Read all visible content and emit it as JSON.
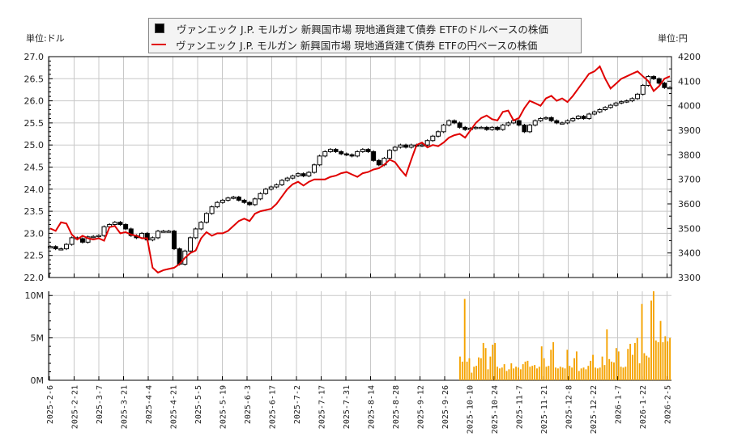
{
  "legend": {
    "usd_label": "ヴァンエック J.P. モルガン 新興国市場 現地通貨建て債券 ETFのドルベースの株価",
    "jpy_label": "ヴァンエック J.P. モルガン 新興国市場 現地通貨建て債券 ETFの円ベースの株価"
  },
  "axes": {
    "left_unit": "単位:ドル",
    "right_unit": "単位:円"
  },
  "colors": {
    "usd_candle": "#000000",
    "jpy_line": "#e00000",
    "volume_bar": "#f5a300",
    "grid": "#c8c8c8"
  },
  "chart_data": [
    {
      "type": "candlestick+line",
      "title": "",
      "legend": [
        "ヴァンエック J.P. モルガン 新興国市場 現地通貨建て債券 ETFのドルベースの株価",
        "ヴァンエック J.P. モルガン 新興国市場 現地通貨建て債券 ETFの円ベースの株価"
      ],
      "ylabel_left": "単位:ドル",
      "ylabel_right": "単位:円",
      "ylim_left": [
        22.0,
        27.0
      ],
      "ylim_right": [
        3300,
        4200
      ],
      "yticks_left": [
        "22.0",
        "22.5",
        "23.0",
        "23.5",
        "24.0",
        "24.5",
        "25.0",
        "25.5",
        "26.0",
        "26.5",
        "27.0"
      ],
      "yticks_right": [
        "3300",
        "3400",
        "3500",
        "3600",
        "3700",
        "3800",
        "3900",
        "4000",
        "4100",
        "4200"
      ],
      "x_tick_labels": [
        "2025-2-6",
        "2025-2-21",
        "2025-3-7",
        "2025-3-21",
        "2025-4-4",
        "2025-4-21",
        "2025-5-5",
        "2025-5-19",
        "2025-6-3",
        "2025-6-17",
        "2025-7-2",
        "2025-7-17",
        "2025-7-31",
        "2025-8-14",
        "2025-8-28",
        "2025-9-12",
        "2025-9-26",
        "2025-10-10",
        "2025-10-24",
        "2025-11-7",
        "2025-11-21",
        "2025-12-8",
        "2025-12-22",
        "2026-1-7",
        "2026-1-22",
        "2026-2-5"
      ],
      "grid": true,
      "usd_close": [
        22.7,
        22.65,
        22.65,
        22.75,
        22.9,
        22.88,
        22.8,
        22.92,
        22.93,
        22.95,
        23.15,
        23.2,
        23.25,
        23.2,
        23.1,
        22.95,
        22.9,
        23.0,
        22.85,
        22.9,
        23.05,
        23.05,
        23.05,
        22.65,
        22.3,
        22.6,
        22.9,
        23.1,
        23.25,
        23.45,
        23.6,
        23.7,
        23.75,
        23.8,
        23.82,
        23.75,
        23.7,
        23.65,
        23.78,
        23.9,
        24.0,
        24.05,
        24.1,
        24.2,
        24.25,
        24.3,
        24.35,
        24.3,
        24.38,
        24.55,
        24.75,
        24.85,
        24.9,
        24.85,
        24.8,
        24.78,
        24.75,
        24.85,
        24.9,
        24.85,
        24.65,
        24.55,
        24.7,
        24.88,
        24.95,
        25.0,
        24.95,
        25.0,
        24.98,
        25.0,
        25.1,
        25.2,
        25.3,
        25.45,
        25.55,
        25.5,
        25.4,
        25.35,
        25.38,
        25.4,
        25.4,
        25.35,
        25.4,
        25.35,
        25.45,
        25.5,
        25.55,
        25.45,
        25.3,
        25.45,
        25.55,
        25.6,
        25.62,
        25.55,
        25.5,
        25.5,
        25.55,
        25.6,
        25.65,
        25.6,
        25.7,
        25.75,
        25.8,
        25.85,
        25.9,
        25.95,
        25.98,
        26.0,
        26.05,
        26.15,
        26.35,
        26.55,
        26.5,
        26.4,
        26.3,
        26.3
      ],
      "jpy_close": [
        3500,
        3490,
        3525,
        3520,
        3475,
        3455,
        3470,
        3460,
        3455,
        3460,
        3450,
        3505,
        3510,
        3480,
        3485,
        3475,
        3470,
        3460,
        3460,
        3340,
        3320,
        3330,
        3335,
        3340,
        3355,
        3380,
        3400,
        3410,
        3460,
        3485,
        3470,
        3480,
        3480,
        3490,
        3510,
        3530,
        3540,
        3530,
        3560,
        3570,
        3575,
        3580,
        3600,
        3630,
        3660,
        3680,
        3690,
        3675,
        3690,
        3700,
        3700,
        3700,
        3710,
        3715,
        3725,
        3730,
        3720,
        3710,
        3725,
        3730,
        3740,
        3745,
        3760,
        3780,
        3770,
        3740,
        3715,
        3780,
        3840,
        3850,
        3830,
        3840,
        3835,
        3850,
        3870,
        3880,
        3885,
        3870,
        3900,
        3930,
        3950,
        3960,
        3945,
        3940,
        3975,
        3980,
        3940,
        3950,
        3990,
        4020,
        4010,
        4000,
        4030,
        4040,
        4020,
        4030,
        4015,
        4040,
        4070,
        4100,
        4130,
        4140,
        4160,
        4110,
        4070,
        4090,
        4110,
        4120,
        4130,
        4140,
        4120,
        4100,
        4060,
        4080,
        4110,
        4120
      ],
      "volume_series": {
        "ylim": [
          0,
          10500000
        ],
        "yticks": [
          "0M",
          "5M",
          "10M"
        ],
        "start_index": 72,
        "values_m": [
          2.8,
          2.2,
          9.6,
          2.2,
          2.6,
          0.9,
          1.6,
          1.7,
          2.7,
          2.6,
          4.4,
          3.8,
          1.3,
          2.8,
          4.2,
          4.4,
          1.6,
          1.4,
          1.5,
          1.9,
          1.1,
          1.3,
          2.0,
          1.4,
          1.6,
          1.5,
          1.3,
          1.9,
          2.2,
          2.3,
          1.6,
          1.7,
          1.8,
          1.4,
          1.6,
          4.0,
          2.6,
          1.6,
          1.7,
          3.6,
          4.5,
          1.5,
          1.4,
          1.6,
          1.5,
          1.4,
          3.6,
          1.7,
          1.5,
          2.6,
          3.4,
          1.1,
          1.4,
          1.5,
          1.3,
          1.7,
          2.3,
          3.0,
          1.5,
          1.4,
          1.5,
          2.8,
          1.8,
          6.0,
          2.5,
          2.2,
          2.1,
          3.8,
          3.4,
          1.6,
          1.5,
          1.6,
          3.7,
          4.3,
          3.0,
          4.4,
          5.0,
          2.0,
          9.0,
          3.2,
          2.9,
          2.7,
          9.4,
          10.8,
          4.7,
          4.5,
          7.0,
          4.5,
          5.2,
          4.6,
          5.0
        ]
      }
    }
  ]
}
